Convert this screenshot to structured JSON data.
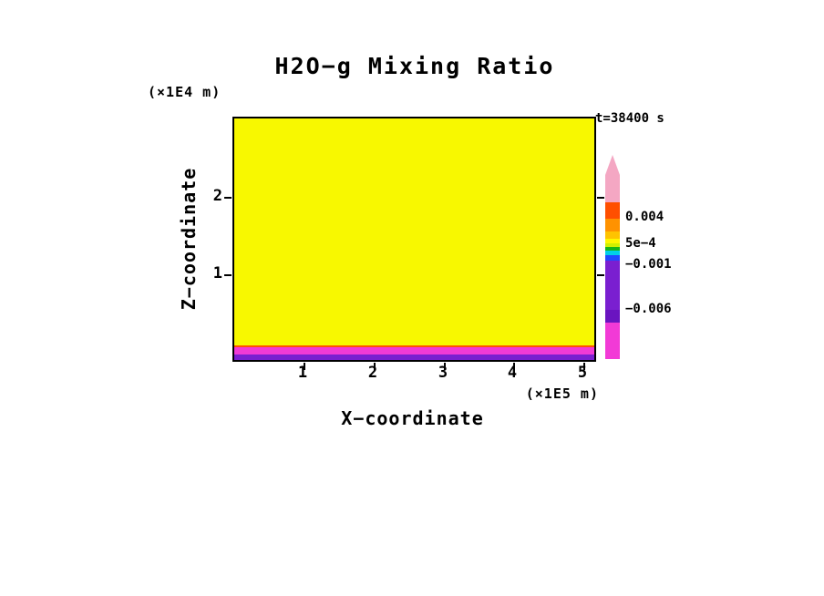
{
  "title": "H2O−g Mixing Ratio",
  "annotations": {
    "time_label": "t=38400 s",
    "z_units": "(×1E4 m)",
    "x_units": "(×1E5 m)"
  },
  "axes": {
    "x": {
      "label": "X−coordinate",
      "ticks": [
        {
          "label": "1",
          "pct": 19.5
        },
        {
          "label": "2",
          "pct": 39.0
        },
        {
          "label": "3",
          "pct": 58.5
        },
        {
          "label": "4",
          "pct": 77.8
        },
        {
          "label": "5",
          "pct": 97.2
        }
      ]
    },
    "z": {
      "label": "Z−coordinate",
      "ticks": [
        {
          "label": "2",
          "pct": 32.8
        },
        {
          "label": "1",
          "pct": 64.9
        }
      ]
    }
  },
  "colorbar": {
    "labels": [
      {
        "text": "0.004"
      },
      {
        "text": "5e−4"
      },
      {
        "text": "−0.001"
      },
      {
        "text": "−0.006"
      }
    ],
    "arrow_tip_height": 22,
    "segments": [
      {
        "color": "#f4a7c3",
        "height": 30,
        "arrow": true
      },
      {
        "color": "#ff4f00",
        "height": 18
      },
      {
        "color": "#ff9200",
        "height": 14
      },
      {
        "color": "#ffc300",
        "height": 8
      },
      {
        "color": "#fff700",
        "height": 5
      },
      {
        "color": "#d0f000",
        "height": 4
      },
      {
        "color": "#17b517",
        "height": 4
      },
      {
        "color": "#00cfe8",
        "height": 5
      },
      {
        "color": "#1f49ff",
        "height": 6
      },
      {
        "color": "#7a1fd0",
        "height": 54
      },
      {
        "color": "#6a14c0",
        "height": 14
      },
      {
        "color": "#f23ad6",
        "height": 40
      }
    ]
  },
  "chart_data": {
    "type": "heatmap",
    "title": "H2O−g Mixing Ratio",
    "xlabel": "X−coordinate (×1E5 m)",
    "ylabel": "Z−coordinate (×1E4 m)",
    "time": "t=38400 s",
    "x_range": [
      0,
      5.2
    ],
    "z_range": [
      0,
      3.0
    ],
    "contour_levels": [
      -0.006,
      -0.001,
      0.0005,
      0.004
    ],
    "uniform_in_x": true,
    "layers": [
      {
        "z_from": 0.0,
        "z_to": 0.07,
        "color": "#7a1fd0",
        "value_band": "-0.006 to -0.001"
      },
      {
        "z_from": 0.07,
        "z_to": 0.155,
        "color": "#f23ad6",
        "value_band": "below -0.006"
      },
      {
        "z_from": 0.155,
        "z_to": 0.185,
        "color": "#ff5500",
        "value_band": "near 0.004 contour"
      },
      {
        "z_from": 0.185,
        "z_to": 3.0,
        "color": "#f8f800",
        "value_band": "5e-4 to 0.004"
      }
    ]
  }
}
